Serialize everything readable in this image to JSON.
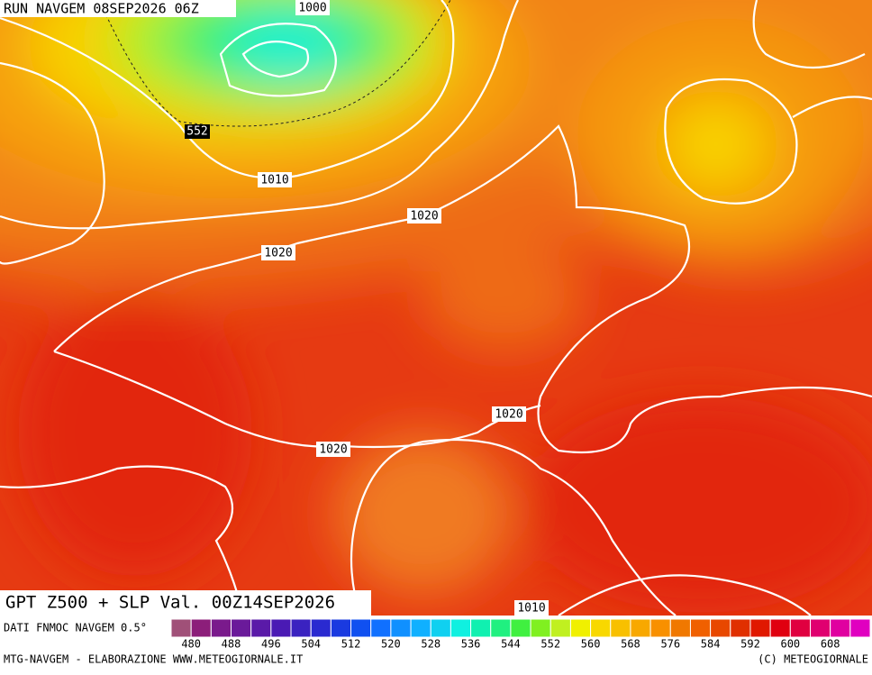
{
  "header": {
    "run": "RUN NAVGEM 08SEP2026 06Z"
  },
  "title": "GPT Z500 + SLP Val. 00Z14SEP2026",
  "contour_labels": [
    "1000",
    "552",
    "1010",
    "1020",
    "1020",
    "1020",
    "1020",
    "1010"
  ],
  "legend": {
    "source": "DATI FNMOC NAVGEM 0.5°",
    "colors": [
      "#a05078",
      "#8c1e7a",
      "#7a1a8c",
      "#6a1a9a",
      "#5a1aa8",
      "#4a1ab4",
      "#3a22c0",
      "#2a2ad0",
      "#1a3ae0",
      "#1050f0",
      "#1070ff",
      "#1090ff",
      "#10b0ff",
      "#10d0f0",
      "#10f0e0",
      "#10f0b0",
      "#20f080",
      "#40f040",
      "#80f020",
      "#c0f020",
      "#f0f000",
      "#f8d800",
      "#f8c000",
      "#f8a800",
      "#f89000",
      "#f07800",
      "#f06000",
      "#e84800",
      "#e03000",
      "#e01800",
      "#e00010",
      "#e00040",
      "#e00070",
      "#e000a0",
      "#e000c0"
    ],
    "labels": [
      "480",
      "488",
      "496",
      "504",
      "512",
      "520",
      "528",
      "536",
      "544",
      "552",
      "560",
      "568",
      "576",
      "584",
      "592",
      "600",
      "608"
    ]
  },
  "footer": {
    "left": "MTG-NAVGEM - ELABORAZIONE WWW.METEOGIORNALE.IT",
    "right": "(C) METEOGIORNALE"
  }
}
